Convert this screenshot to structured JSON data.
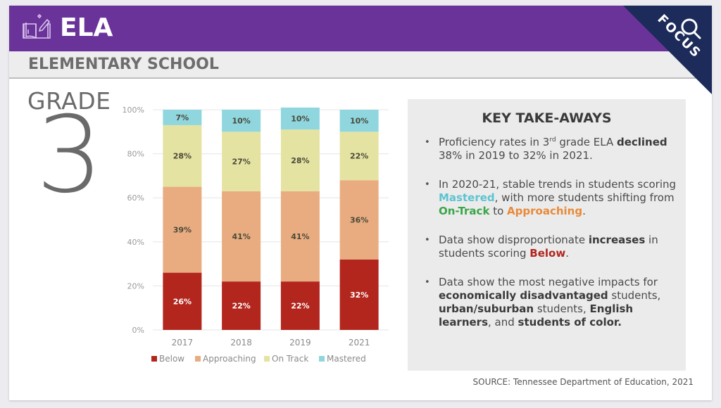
{
  "header": {
    "subject": "ELA",
    "icon": "book-pencil-icon",
    "subtitle": "ELEMENTARY SCHOOL",
    "ribbon_label": "FOCUS",
    "ribbon_icon": "magnifier-icon"
  },
  "grade": {
    "label": "GRADE",
    "number": "3"
  },
  "colors": {
    "header_purple": "#6a3399",
    "ribbon_navy": "#1c2b5a",
    "below": "#b2261e",
    "approaching": "#e9ac80",
    "on_track": "#e5e3a1",
    "mastered": "#8fd6df"
  },
  "chart_data": {
    "type": "bar",
    "stacked": true,
    "categories": [
      "2017",
      "2018",
      "2019",
      "2021"
    ],
    "series": [
      {
        "name": "Below",
        "values": [
          26,
          22,
          22,
          32
        ],
        "color": "#b2261e"
      },
      {
        "name": "Approaching",
        "values": [
          39,
          41,
          41,
          36
        ],
        "color": "#e9ac80"
      },
      {
        "name": "On Track",
        "values": [
          28,
          27,
          28,
          22
        ],
        "color": "#e5e3a1"
      },
      {
        "name": "Mastered",
        "values": [
          7,
          10,
          10,
          10
        ],
        "color": "#8fd6df"
      }
    ],
    "data_labels": [
      [
        "26%",
        "22%",
        "22%",
        "32%"
      ],
      [
        "39%",
        "41%",
        "41%",
        "36%"
      ],
      [
        "28%",
        "27%",
        "28%",
        "22%"
      ],
      [
        "7%",
        "10%",
        "10%",
        "10%"
      ]
    ],
    "ylim": [
      0,
      100
    ],
    "yticks": [
      0,
      20,
      40,
      60,
      80,
      100
    ],
    "ytick_labels": [
      "0%",
      "20%",
      "40%",
      "60%",
      "80%",
      "100%"
    ],
    "title": "",
    "xlabel": "",
    "ylabel": "",
    "grid": true,
    "legend_position": "bottom"
  },
  "key_takeaways": {
    "title": "KEY TAKE-AWAYS",
    "items": [
      {
        "parts": [
          {
            "t": "Proficiency rates in 3"
          },
          {
            "t": "rd",
            "style": "sup"
          },
          {
            "t": " grade ELA "
          },
          {
            "t": "declined",
            "style": "bold"
          },
          {
            "t": " 38% in 2019 to 32% in 2021."
          }
        ]
      },
      {
        "parts": [
          {
            "t": "In 2020-21, stable trends in students scoring "
          },
          {
            "t": "Mastered",
            "style": "mastered"
          },
          {
            "t": ", with more students shifting from "
          },
          {
            "t": "On-Track",
            "style": "ontrack"
          },
          {
            "t": " to "
          },
          {
            "t": "Approaching",
            "style": "approach"
          },
          {
            "t": "."
          }
        ]
      },
      {
        "parts": [
          {
            "t": "Data show disproportionate "
          },
          {
            "t": "increases",
            "style": "bold"
          },
          {
            "t": " in students scoring "
          },
          {
            "t": "Below",
            "style": "below"
          },
          {
            "t": "."
          }
        ]
      },
      {
        "parts": [
          {
            "t": "Data show the most negative impacts for "
          },
          {
            "t": "economically disadvantaged",
            "style": "bold"
          },
          {
            "t": " students, "
          },
          {
            "t": "urban/suburban",
            "style": "bold"
          },
          {
            "t": " students, "
          },
          {
            "t": "English learners",
            "style": "bold"
          },
          {
            "t": ", and "
          },
          {
            "t": "students of color.",
            "style": "bold"
          }
        ]
      }
    ]
  },
  "source": "SOURCE: Tennessee Department of Education, 2021"
}
